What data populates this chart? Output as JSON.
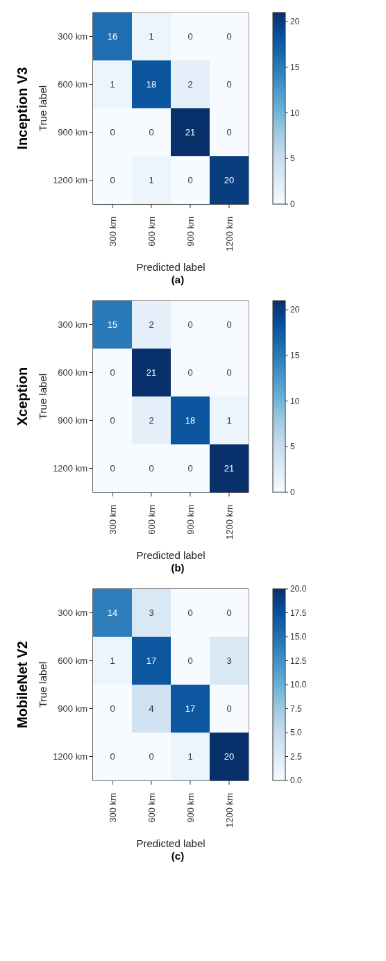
{
  "chart_data": [
    {
      "type": "heatmap",
      "title": "Inception V3",
      "xlabel": "Predicted label",
      "ylabel": "True label",
      "categories": [
        "300 km",
        "600 km",
        "900 km",
        "1200 km"
      ],
      "y_categories": [
        "300 km",
        "600 km",
        "900 km",
        "1200 km"
      ],
      "cells": [
        [
          16,
          1,
          0,
          0
        ],
        [
          1,
          18,
          2,
          0
        ],
        [
          0,
          0,
          21,
          0
        ],
        [
          0,
          1,
          0,
          20
        ]
      ],
      "clim": [
        0,
        21
      ],
      "cticks": [
        0,
        5,
        10,
        15,
        20
      ],
      "data_labels": true,
      "annotations": [
        "(a)"
      ]
    },
    {
      "type": "heatmap",
      "title": "Xception",
      "xlabel": "Predicted label",
      "ylabel": "True label",
      "categories": [
        "300 km",
        "600 km",
        "900 km",
        "1200 km"
      ],
      "y_categories": [
        "300 km",
        "600 km",
        "900 km",
        "1200 km"
      ],
      "cells": [
        [
          15,
          2,
          0,
          0
        ],
        [
          0,
          21,
          0,
          0
        ],
        [
          0,
          2,
          18,
          1
        ],
        [
          0,
          0,
          0,
          21
        ]
      ],
      "clim": [
        0,
        21
      ],
      "cticks": [
        0,
        5,
        10,
        15,
        20
      ],
      "data_labels": true,
      "annotations": [
        "(b)"
      ]
    },
    {
      "type": "heatmap",
      "title": "MobileNet V2",
      "xlabel": "Predicted label",
      "ylabel": "True label",
      "categories": [
        "300 km",
        "600 km",
        "900 km",
        "1200 km"
      ],
      "y_categories": [
        "300 km",
        "600 km",
        "900 km",
        "1200 km"
      ],
      "cells": [
        [
          14,
          3,
          0,
          0
        ],
        [
          1,
          17,
          0,
          3
        ],
        [
          0,
          4,
          17,
          0
        ],
        [
          0,
          0,
          1,
          20
        ]
      ],
      "clim": [
        0,
        20
      ],
      "cticks": [
        {
          "value": 0,
          "label": "0.0"
        },
        {
          "value": 2.5,
          "label": "2.5"
        },
        {
          "value": 5,
          "label": "5.0"
        },
        {
          "value": 7.5,
          "label": "7.5"
        },
        {
          "value": 10,
          "label": "10.0"
        },
        {
          "value": 12.5,
          "label": "12.5"
        },
        {
          "value": 15,
          "label": "15.0"
        },
        {
          "value": 17.5,
          "label": "17.5"
        },
        {
          "value": 20,
          "label": "20.0"
        }
      ],
      "data_labels": true,
      "annotations": [
        "(c)"
      ]
    }
  ]
}
